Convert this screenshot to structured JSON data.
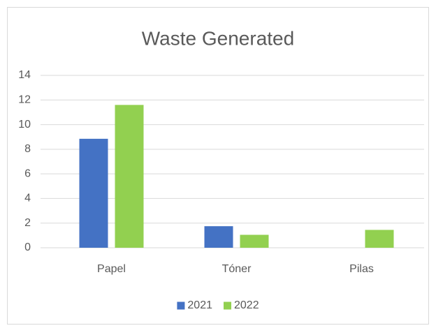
{
  "chart_data": {
    "type": "bar",
    "title": "Waste Generated",
    "categories": [
      "Papel",
      "Tóner",
      "Pilas"
    ],
    "series": [
      {
        "name": "2021",
        "color": "#4472c4",
        "values": [
          8.85,
          1.75,
          0
        ]
      },
      {
        "name": "2022",
        "color": "#92d050",
        "values": [
          11.6,
          1.05,
          1.45
        ]
      }
    ],
    "ylim": [
      0,
      14
    ],
    "yticks": [
      0,
      2,
      4,
      6,
      8,
      10,
      12,
      14
    ],
    "grid": true,
    "legend": "bottom"
  }
}
